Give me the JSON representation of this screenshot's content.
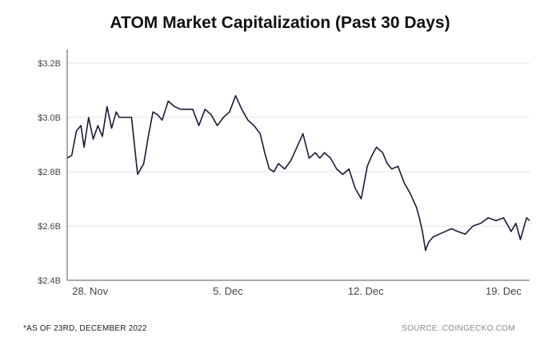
{
  "title": "ATOM Market Capitalization (Past 30 Days)",
  "footnote": "*AS OF 23RD, DECEMBER 2022",
  "source": "SOURCE: COINGECKO.COM",
  "chart_data": {
    "type": "line",
    "title": "ATOM Market Capitalization (Past 30 Days)",
    "xlabel": "",
    "ylabel": "",
    "x_unit": "day",
    "ylim": [
      2.4,
      3.25
    ],
    "xlim": [
      0,
      30.2
    ],
    "y_ticks": [
      {
        "value": 3.2,
        "label": "$3.2B"
      },
      {
        "value": 3.0,
        "label": "$3.0B"
      },
      {
        "value": 2.8,
        "label": "$2.8B"
      },
      {
        "value": 2.6,
        "label": "$2.6B"
      },
      {
        "value": 2.4,
        "label": "$2.4B"
      }
    ],
    "x_ticks": [
      {
        "value": 1.5,
        "label": "28. Nov"
      },
      {
        "value": 10.5,
        "label": "5. Dec"
      },
      {
        "value": 19.5,
        "label": "12. Dec"
      },
      {
        "value": 28.5,
        "label": "19. Dec"
      }
    ],
    "grid": true,
    "color": "#1a1a3a",
    "series": [
      {
        "name": "",
        "x": [
          0,
          0.3,
          0.6,
          0.9,
          1.1,
          1.4,
          1.7,
          2.0,
          2.3,
          2.6,
          2.9,
          3.2,
          3.4,
          3.8,
          4.2,
          4.6,
          5.0,
          5.3,
          5.6,
          5.9,
          6.2,
          6.6,
          7.0,
          7.4,
          7.8,
          8.2,
          8.6,
          9.0,
          9.4,
          9.8,
          10.2,
          10.6,
          11.0,
          11.4,
          11.8,
          12.2,
          12.6,
          12.9,
          13.2,
          13.5,
          13.8,
          14.2,
          14.6,
          15.0,
          15.4,
          15.8,
          16.2,
          16.5,
          16.8,
          17.2,
          17.6,
          18.0,
          18.4,
          18.8,
          19.2,
          19.6,
          19.9,
          20.2,
          20.6,
          20.9,
          21.2,
          21.6,
          22.0,
          22.4,
          22.8,
          23.0,
          23.2,
          23.4,
          23.6,
          23.9,
          24.3,
          24.7,
          25.1,
          25.5,
          26.0,
          26.5,
          27.0,
          27.5,
          28.0,
          28.5,
          29.0,
          29.3,
          29.6,
          30.0,
          30.2
        ],
        "values": [
          2.85,
          2.86,
          2.95,
          2.97,
          2.89,
          3.0,
          2.92,
          2.97,
          2.93,
          3.04,
          2.96,
          3.02,
          3.0,
          3.0,
          3.0,
          2.79,
          2.83,
          2.93,
          3.02,
          3.01,
          2.99,
          3.06,
          3.04,
          3.03,
          3.03,
          3.03,
          2.97,
          3.03,
          3.01,
          2.97,
          3.0,
          3.02,
          3.08,
          3.03,
          2.99,
          2.97,
          2.94,
          2.87,
          2.81,
          2.8,
          2.83,
          2.81,
          2.84,
          2.89,
          2.94,
          2.85,
          2.87,
          2.85,
          2.87,
          2.85,
          2.81,
          2.79,
          2.81,
          2.74,
          2.7,
          2.82,
          2.86,
          2.89,
          2.87,
          2.83,
          2.81,
          2.82,
          2.76,
          2.72,
          2.67,
          2.63,
          2.58,
          2.51,
          2.54,
          2.56,
          2.57,
          2.58,
          2.59,
          2.58,
          2.57,
          2.6,
          2.61,
          2.63,
          2.62,
          2.63,
          2.58,
          2.61,
          2.55,
          2.63,
          2.62
        ]
      }
    ]
  }
}
